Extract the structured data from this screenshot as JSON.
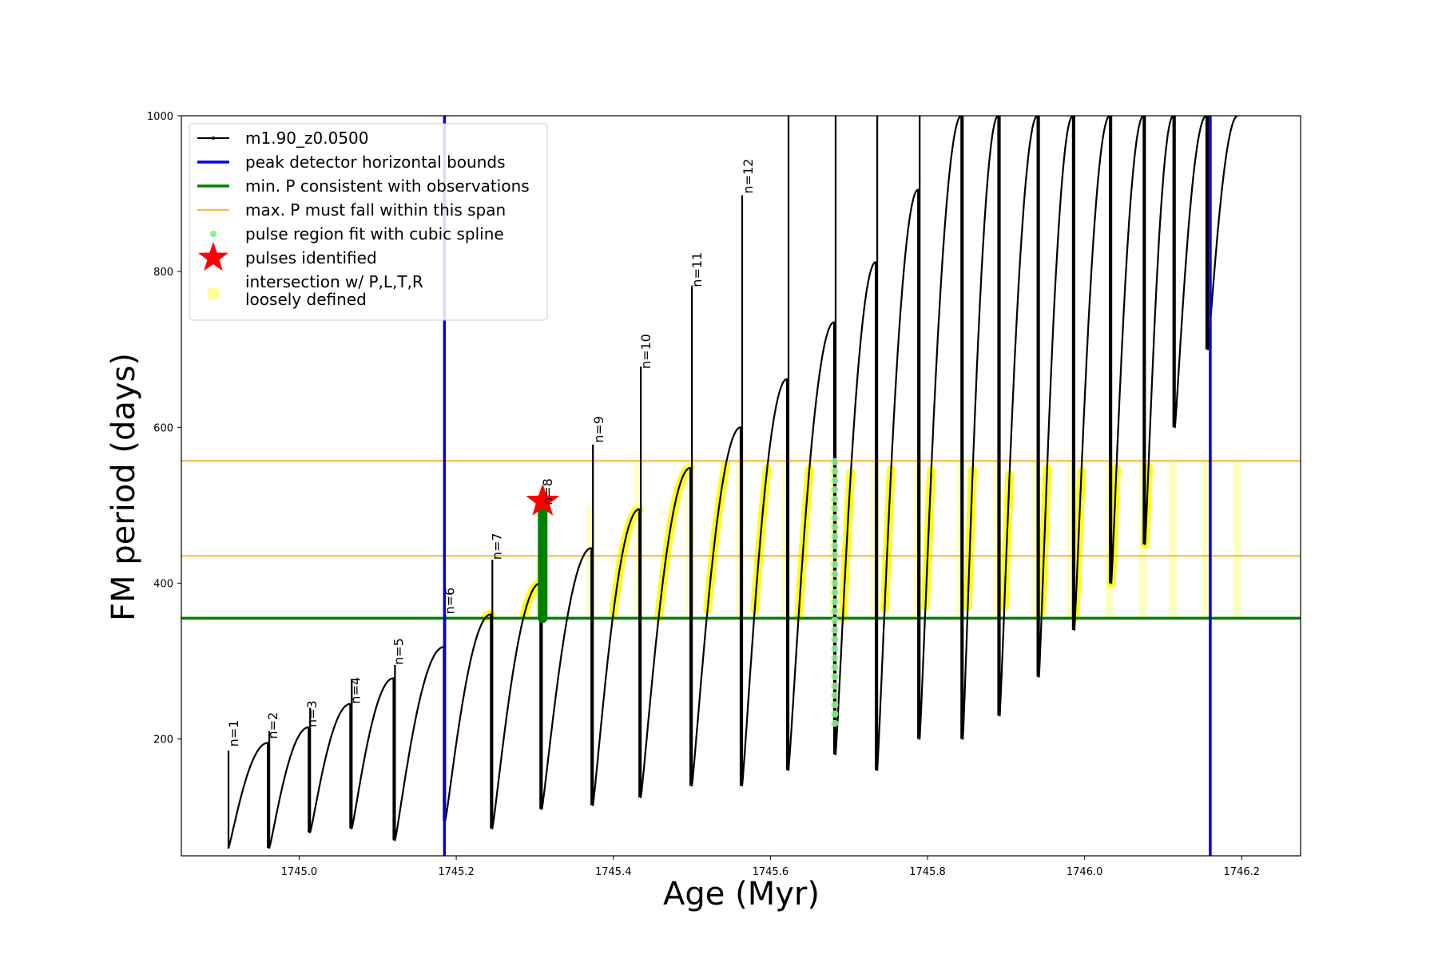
{
  "chart_data": {
    "type": "line",
    "title": "",
    "xlabel": "Age (Myr)",
    "ylabel": "FM period (days)",
    "xlim": [
      1744.85,
      1746.275
    ],
    "ylim": [
      50,
      1000
    ],
    "xticks": [
      1745.0,
      1745.2,
      1745.4,
      1745.6,
      1745.8,
      1746.0,
      1746.2
    ],
    "xtick_labels": [
      "1745.0",
      "1745.2",
      "1745.4",
      "1745.6",
      "1745.8",
      "1746.0",
      "1746.2"
    ],
    "yticks": [
      200,
      400,
      600,
      800,
      1000
    ],
    "ytick_labels": [
      "200",
      "400",
      "600",
      "800",
      "1000"
    ],
    "grid": false,
    "legend_placement": "top-left",
    "colors": {
      "track": "#000000",
      "bounds": "#0000dd",
      "min_p": "#008000",
      "max_p": "#ffa500",
      "spline": "#90ee90",
      "star": "#ff0000",
      "loose": "#ffff00"
    },
    "legend": [
      {
        "label": "m1.90_z0.0500",
        "style": "dot-line",
        "color": "#000000"
      },
      {
        "label": "peak detector horizontal bounds",
        "style": "line",
        "color": "#0000dd"
      },
      {
        "label": "min. P consistent with observations",
        "style": "line",
        "color": "#008000"
      },
      {
        "label": "max. P must fall within this span",
        "style": "thin-line",
        "color": "#ffa500"
      },
      {
        "label": "pulse region fit with cubic spline",
        "style": "dot",
        "color": "#90ee90"
      },
      {
        "label": "pulses identified",
        "style": "star",
        "color": "#ff0000"
      },
      {
        "label": "intersection w/ P,L,T,R\nloosely defined",
        "style": "big-dot",
        "color": "#ffff99"
      }
    ],
    "peak_bounds_x": [
      1745.185,
      1746.16
    ],
    "min_p_consistent": 355,
    "max_p_span": [
      435,
      557
    ],
    "pulses_identified": [
      {
        "x": 1745.31,
        "y": 505
      }
    ],
    "annotations": [
      {
        "label": "n=1",
        "x": 1744.915,
        "y": 190
      },
      {
        "label": "n=2",
        "x": 1744.965,
        "y": 200
      },
      {
        "label": "n=3",
        "x": 1745.015,
        "y": 215
      },
      {
        "label": "n=4",
        "x": 1745.07,
        "y": 245
      },
      {
        "label": "n=5",
        "x": 1745.125,
        "y": 295
      },
      {
        "label": "n=6",
        "x": 1745.19,
        "y": 360
      },
      {
        "label": "n=7",
        "x": 1745.25,
        "y": 430
      },
      {
        "label": "n=8",
        "x": 1745.315,
        "y": 500
      },
      {
        "label": "n=9",
        "x": 1745.38,
        "y": 580
      },
      {
        "label": "n=10",
        "x": 1745.44,
        "y": 675
      },
      {
        "label": "n=11",
        "x": 1745.505,
        "y": 780
      },
      {
        "label": "n=12",
        "x": 1745.57,
        "y": 900
      }
    ],
    "series": [
      {
        "name": "m1.90_z0.0500",
        "color": "#000000",
        "pulses": [
          {
            "x0": 1744.91,
            "x1": 1744.96,
            "start": 60,
            "peak": 195,
            "spike": 185
          },
          {
            "x0": 1744.962,
            "x1": 1745.012,
            "start": 60,
            "peak": 215,
            "spike": 210
          },
          {
            "x0": 1745.014,
            "x1": 1745.065,
            "start": 80,
            "peak": 245,
            "spike": 240
          },
          {
            "x0": 1745.067,
            "x1": 1745.12,
            "start": 85,
            "peak": 278,
            "spike": 275
          },
          {
            "x0": 1745.122,
            "x1": 1745.184,
            "start": 70,
            "peak": 318,
            "spike": 295
          },
          {
            "x0": 1745.186,
            "x1": 1745.244,
            "start": 95,
            "peak": 360,
            "spike": 360
          },
          {
            "x0": 1745.246,
            "x1": 1745.307,
            "start": 85,
            "peak": 400,
            "spike": 430
          },
          {
            "x0": 1745.309,
            "x1": 1745.372,
            "start": 110,
            "peak": 445,
            "spike": 500
          },
          {
            "x0": 1745.374,
            "x1": 1745.433,
            "start": 115,
            "peak": 495,
            "spike": 578
          },
          {
            "x0": 1745.435,
            "x1": 1745.498,
            "start": 125,
            "peak": 548,
            "spike": 678
          },
          {
            "x0": 1745.5,
            "x1": 1745.562,
            "start": 140,
            "peak": 600,
            "spike": 782
          },
          {
            "x0": 1745.564,
            "x1": 1745.621,
            "start": 140,
            "peak": 662,
            "spike": 898
          },
          {
            "x0": 1745.623,
            "x1": 1745.681,
            "start": 160,
            "peak": 735,
            "spike": 1000
          },
          {
            "x0": 1745.683,
            "x1": 1745.734,
            "start": 180,
            "peak": 812,
            "spike": 1000
          },
          {
            "x0": 1745.736,
            "x1": 1745.788,
            "start": 160,
            "peak": 905,
            "spike": 1000
          },
          {
            "x0": 1745.79,
            "x1": 1745.843,
            "start": 200,
            "peak": 1000,
            "spike": 1000
          },
          {
            "x0": 1745.845,
            "x1": 1745.89,
            "start": 200,
            "peak": 1000,
            "spike": 1000
          },
          {
            "x0": 1745.892,
            "x1": 1745.94,
            "start": 230,
            "peak": 1000,
            "spike": 1000
          },
          {
            "x0": 1745.942,
            "x1": 1745.985,
            "start": 280,
            "peak": 1000,
            "spike": 1000
          },
          {
            "x0": 1745.987,
            "x1": 1746.032,
            "start": 340,
            "peak": 1000,
            "spike": 1000
          },
          {
            "x0": 1746.034,
            "x1": 1746.075,
            "start": 400,
            "peak": 1000,
            "spike": 1000
          },
          {
            "x0": 1746.077,
            "x1": 1746.113,
            "start": 450,
            "peak": 1000,
            "spike": 1000
          },
          {
            "x0": 1746.115,
            "x1": 1746.155,
            "start": 600,
            "peak": 1000,
            "spike": 1000
          },
          {
            "x0": 1746.157,
            "x1": 1746.195,
            "start": 700,
            "peak": 1000,
            "spike": 1000
          }
        ]
      }
    ]
  }
}
